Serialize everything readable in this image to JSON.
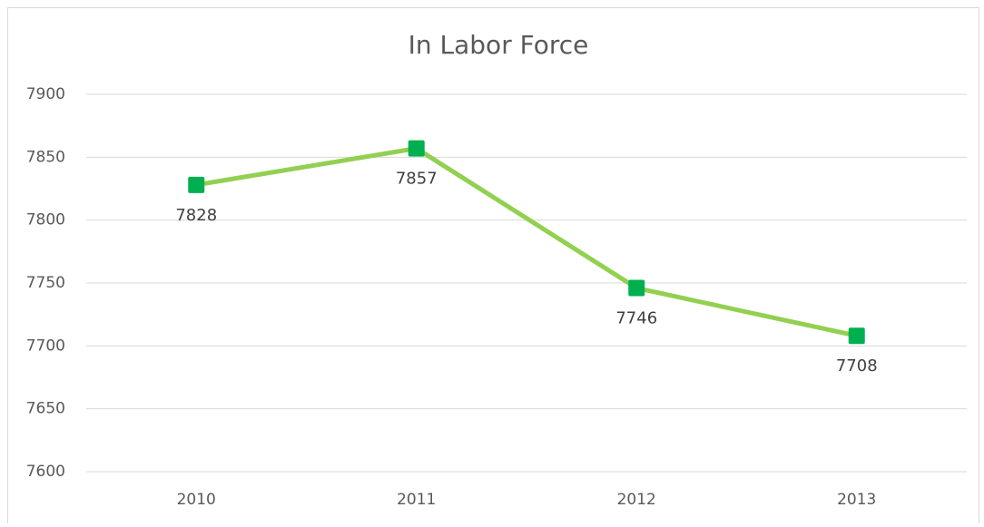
{
  "chart_data": {
    "type": "line",
    "title": "In Labor Force",
    "categories": [
      "2010",
      "2011",
      "2012",
      "2013"
    ],
    "series": [
      {
        "name": "In Labor Force",
        "color": "#92d050",
        "marker_color": "#00b050",
        "values": [
          7828,
          7857,
          7746,
          7708
        ]
      }
    ],
    "ylim": [
      7600,
      7900
    ],
    "yticks": [
      7600,
      7650,
      7700,
      7750,
      7800,
      7850,
      7900
    ],
    "grid": true,
    "data_labels": true
  }
}
